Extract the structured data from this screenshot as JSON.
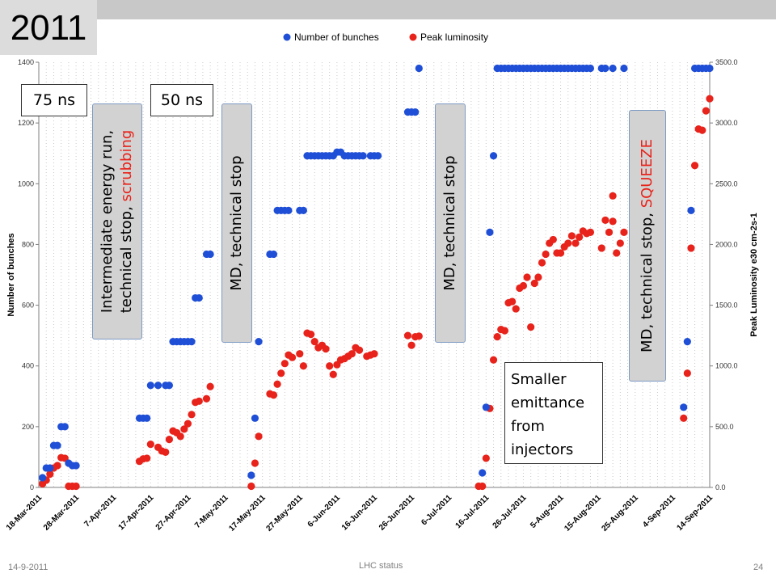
{
  "slide": {
    "year": "2011",
    "footer_date": "14-9-2011",
    "footer_title": "LHC status",
    "page_number": "24"
  },
  "annotations": {
    "ns75": "75 ns",
    "ns50": "50 ns",
    "pill1_line1": "Intermediate energy run,",
    "pill1_line2a": "technical stop, ",
    "pill1_line2b": "scrubbing",
    "pill2": "MD, technical stop",
    "pill3": "MD, technical stop",
    "pill4a": "MD, technical stop, ",
    "pill4b": "SQUEEZE",
    "smaller_line1": "Smaller",
    "smaller_line2": "emittance",
    "smaller_line3": "from",
    "smaller_line4": "injectors"
  },
  "colors": {
    "bunches": "#1f4fd6",
    "luminosity": "#e8231b",
    "scrubbing_text": "#e8231b",
    "squeeze_text": "#e8231b"
  },
  "chart_data": {
    "type": "scatter",
    "legend_position": "top",
    "grid": "vertical dotted",
    "x_axis": {
      "type": "date",
      "range": [
        "2011-03-18",
        "2011-09-14"
      ],
      "tick_labels": [
        "18-Mar-2011",
        "28-Mar-2011",
        "7-Apr-2011",
        "17-Apr-2011",
        "27-Apr-2011",
        "7-May-2011",
        "17-May-2011",
        "27-May-2011",
        "6-Jun-2011",
        "16-Jun-2011",
        "26-Jun-2011",
        "6-Jul-2011",
        "16-Jul-2011",
        "26-Jul-2011",
        "5-Aug-2011",
        "15-Aug-2011",
        "25-Aug-2011",
        "4-Sep-2011",
        "14-Sep-2011"
      ]
    },
    "y_left": {
      "label": "Number of bunches",
      "range": [
        0,
        1400
      ],
      "tick_labels": [
        "0",
        "200",
        "400",
        "600",
        "800",
        "1000",
        "1200",
        "1400"
      ]
    },
    "y_right": {
      "label": "Peak Luminosity e30 cm-2s-1",
      "range": [
        0,
        3500
      ],
      "tick_labels": [
        "0.0",
        "500.0",
        "1000.0",
        "1500.0",
        "2000.0",
        "2500.0",
        "3000.0",
        "3500.0"
      ]
    },
    "series": [
      {
        "name": "Number of bunches",
        "axis": "left",
        "points": [
          [
            "2011-03-19",
            32
          ],
          [
            "2011-03-20",
            64
          ],
          [
            "2011-03-21",
            64
          ],
          [
            "2011-03-22",
            138
          ],
          [
            "2011-03-23",
            138
          ],
          [
            "2011-03-24",
            200
          ],
          [
            "2011-03-25",
            200
          ],
          [
            "2011-03-26",
            80
          ],
          [
            "2011-03-27",
            72
          ],
          [
            "2011-03-28",
            72
          ],
          [
            "2011-04-14",
            228
          ],
          [
            "2011-04-15",
            228
          ],
          [
            "2011-04-16",
            228
          ],
          [
            "2011-04-17",
            336
          ],
          [
            "2011-04-19",
            336
          ],
          [
            "2011-04-21",
            336
          ],
          [
            "2011-04-22",
            336
          ],
          [
            "2011-04-23",
            480
          ],
          [
            "2011-04-24",
            480
          ],
          [
            "2011-04-25",
            480
          ],
          [
            "2011-04-26",
            480
          ],
          [
            "2011-04-27",
            480
          ],
          [
            "2011-04-28",
            480
          ],
          [
            "2011-04-29",
            624
          ],
          [
            "2011-04-30",
            624
          ],
          [
            "2011-05-02",
            768
          ],
          [
            "2011-05-03",
            768
          ],
          [
            "2011-05-14",
            40
          ],
          [
            "2011-05-15",
            228
          ],
          [
            "2011-05-16",
            480
          ],
          [
            "2011-05-19",
            768
          ],
          [
            "2011-05-20",
            768
          ],
          [
            "2011-05-21",
            912
          ],
          [
            "2011-05-22",
            912
          ],
          [
            "2011-05-23",
            912
          ],
          [
            "2011-05-24",
            912
          ],
          [
            "2011-05-27",
            912
          ],
          [
            "2011-05-28",
            912
          ],
          [
            "2011-05-29",
            1092
          ],
          [
            "2011-05-30",
            1092
          ],
          [
            "2011-05-31",
            1092
          ],
          [
            "2011-06-01",
            1092
          ],
          [
            "2011-06-02",
            1092
          ],
          [
            "2011-06-03",
            1092
          ],
          [
            "2011-06-04",
            1092
          ],
          [
            "2011-06-05",
            1092
          ],
          [
            "2011-06-06",
            1104
          ],
          [
            "2011-06-07",
            1104
          ],
          [
            "2011-06-08",
            1092
          ],
          [
            "2011-06-09",
            1092
          ],
          [
            "2011-06-10",
            1092
          ],
          [
            "2011-06-11",
            1092
          ],
          [
            "2011-06-12",
            1092
          ],
          [
            "2011-06-13",
            1092
          ],
          [
            "2011-06-15",
            1092
          ],
          [
            "2011-06-16",
            1092
          ],
          [
            "2011-06-17",
            1092
          ],
          [
            "2011-06-25",
            1236
          ],
          [
            "2011-06-26",
            1236
          ],
          [
            "2011-06-27",
            1236
          ],
          [
            "2011-06-28",
            1380
          ],
          [
            "2011-07-15",
            48
          ],
          [
            "2011-07-16",
            264
          ],
          [
            "2011-07-17",
            840
          ],
          [
            "2011-07-18",
            1092
          ],
          [
            "2011-07-19",
            1380
          ],
          [
            "2011-07-20",
            1380
          ],
          [
            "2011-07-21",
            1380
          ],
          [
            "2011-07-22",
            1380
          ],
          [
            "2011-07-23",
            1380
          ],
          [
            "2011-07-24",
            1380
          ],
          [
            "2011-07-25",
            1380
          ],
          [
            "2011-07-26",
            1380
          ],
          [
            "2011-07-27",
            1380
          ],
          [
            "2011-07-28",
            1380
          ],
          [
            "2011-07-29",
            1380
          ],
          [
            "2011-07-30",
            1380
          ],
          [
            "2011-07-31",
            1380
          ],
          [
            "2011-08-01",
            1380
          ],
          [
            "2011-08-02",
            1380
          ],
          [
            "2011-08-03",
            1380
          ],
          [
            "2011-08-04",
            1380
          ],
          [
            "2011-08-05",
            1380
          ],
          [
            "2011-08-06",
            1380
          ],
          [
            "2011-08-07",
            1380
          ],
          [
            "2011-08-08",
            1380
          ],
          [
            "2011-08-09",
            1380
          ],
          [
            "2011-08-10",
            1380
          ],
          [
            "2011-08-11",
            1380
          ],
          [
            "2011-08-12",
            1380
          ],
          [
            "2011-08-13",
            1380
          ],
          [
            "2011-08-16",
            1380
          ],
          [
            "2011-08-17",
            1380
          ],
          [
            "2011-08-19",
            1380
          ],
          [
            "2011-08-22",
            1380
          ],
          [
            "2011-09-07",
            264
          ],
          [
            "2011-09-08",
            480
          ],
          [
            "2011-09-09",
            912
          ],
          [
            "2011-09-10",
            1380
          ],
          [
            "2011-09-11",
            1380
          ],
          [
            "2011-09-12",
            1380
          ],
          [
            "2011-09-13",
            1380
          ],
          [
            "2011-09-14",
            1380
          ]
        ]
      },
      {
        "name": "Peak luminosity",
        "axis": "right",
        "points": [
          [
            "2011-03-19",
            30
          ],
          [
            "2011-03-20",
            60
          ],
          [
            "2011-03-21",
            110
          ],
          [
            "2011-03-22",
            160
          ],
          [
            "2011-03-23",
            180
          ],
          [
            "2011-03-24",
            245
          ],
          [
            "2011-03-25",
            240
          ],
          [
            "2011-03-26",
            10
          ],
          [
            "2011-03-27",
            10
          ],
          [
            "2011-03-28",
            10
          ],
          [
            "2011-04-14",
            215
          ],
          [
            "2011-04-15",
            235
          ],
          [
            "2011-04-16",
            240
          ],
          [
            "2011-04-17",
            355
          ],
          [
            "2011-04-19",
            330
          ],
          [
            "2011-04-20",
            300
          ],
          [
            "2011-04-21",
            290
          ],
          [
            "2011-04-22",
            395
          ],
          [
            "2011-04-23",
            465
          ],
          [
            "2011-04-24",
            450
          ],
          [
            "2011-04-25",
            420
          ],
          [
            "2011-04-26",
            480
          ],
          [
            "2011-04-27",
            525
          ],
          [
            "2011-04-28",
            600
          ],
          [
            "2011-04-29",
            700
          ],
          [
            "2011-04-30",
            710
          ],
          [
            "2011-05-02",
            730
          ],
          [
            "2011-05-03",
            830
          ],
          [
            "2011-05-14",
            10
          ],
          [
            "2011-05-15",
            200
          ],
          [
            "2011-05-16",
            420
          ],
          [
            "2011-05-19",
            770
          ],
          [
            "2011-05-20",
            760
          ],
          [
            "2011-05-21",
            850
          ],
          [
            "2011-05-22",
            940
          ],
          [
            "2011-05-23",
            1020
          ],
          [
            "2011-05-24",
            1090
          ],
          [
            "2011-05-25",
            1070
          ],
          [
            "2011-05-27",
            1100
          ],
          [
            "2011-05-28",
            1000
          ],
          [
            "2011-05-29",
            1270
          ],
          [
            "2011-05-30",
            1260
          ],
          [
            "2011-05-31",
            1200
          ],
          [
            "2011-06-01",
            1150
          ],
          [
            "2011-06-02",
            1170
          ],
          [
            "2011-06-03",
            1140
          ],
          [
            "2011-06-04",
            1000
          ],
          [
            "2011-06-05",
            930
          ],
          [
            "2011-06-06",
            1010
          ],
          [
            "2011-06-07",
            1050
          ],
          [
            "2011-06-08",
            1060
          ],
          [
            "2011-06-09",
            1080
          ],
          [
            "2011-06-10",
            1100
          ],
          [
            "2011-06-11",
            1150
          ],
          [
            "2011-06-12",
            1130
          ],
          [
            "2011-06-14",
            1080
          ],
          [
            "2011-06-15",
            1090
          ],
          [
            "2011-06-16",
            1100
          ],
          [
            "2011-06-25",
            1250
          ],
          [
            "2011-06-26",
            1170
          ],
          [
            "2011-06-27",
            1240
          ],
          [
            "2011-06-28",
            1245
          ],
          [
            "2011-07-14",
            10
          ],
          [
            "2011-07-15",
            10
          ],
          [
            "2011-07-16",
            240
          ],
          [
            "2011-07-17",
            650
          ],
          [
            "2011-07-18",
            1050
          ],
          [
            "2011-07-19",
            1240
          ],
          [
            "2011-07-20",
            1300
          ],
          [
            "2011-07-21",
            1290
          ],
          [
            "2011-07-22",
            1520
          ],
          [
            "2011-07-23",
            1530
          ],
          [
            "2011-07-24",
            1470
          ],
          [
            "2011-07-25",
            1640
          ],
          [
            "2011-07-26",
            1660
          ],
          [
            "2011-07-27",
            1730
          ],
          [
            "2011-07-28",
            1320
          ],
          [
            "2011-07-29",
            1680
          ],
          [
            "2011-07-30",
            1730
          ],
          [
            "2011-07-31",
            1850
          ],
          [
            "2011-08-01",
            1920
          ],
          [
            "2011-08-02",
            2010
          ],
          [
            "2011-08-03",
            2040
          ],
          [
            "2011-08-04",
            1930
          ],
          [
            "2011-08-05",
            1930
          ],
          [
            "2011-08-06",
            1980
          ],
          [
            "2011-08-07",
            2010
          ],
          [
            "2011-08-08",
            2070
          ],
          [
            "2011-08-09",
            2010
          ],
          [
            "2011-08-10",
            2060
          ],
          [
            "2011-08-11",
            2110
          ],
          [
            "2011-08-12",
            2090
          ],
          [
            "2011-08-13",
            2100
          ],
          [
            "2011-08-16",
            1970
          ],
          [
            "2011-08-17",
            2200
          ],
          [
            "2011-08-19",
            2190
          ],
          [
            "2011-08-20",
            1930
          ],
          [
            "2011-08-22",
            2100
          ],
          [
            "2011-08-19",
            2400
          ],
          [
            "2011-08-18",
            2100
          ],
          [
            "2011-08-21",
            2010
          ],
          [
            "2011-09-07",
            570
          ],
          [
            "2011-09-08",
            940
          ],
          [
            "2011-09-09",
            1970
          ],
          [
            "2011-09-10",
            2650
          ],
          [
            "2011-09-11",
            2950
          ],
          [
            "2011-09-12",
            2940
          ],
          [
            "2011-09-13",
            3100
          ],
          [
            "2011-09-14",
            3200
          ]
        ]
      }
    ]
  }
}
